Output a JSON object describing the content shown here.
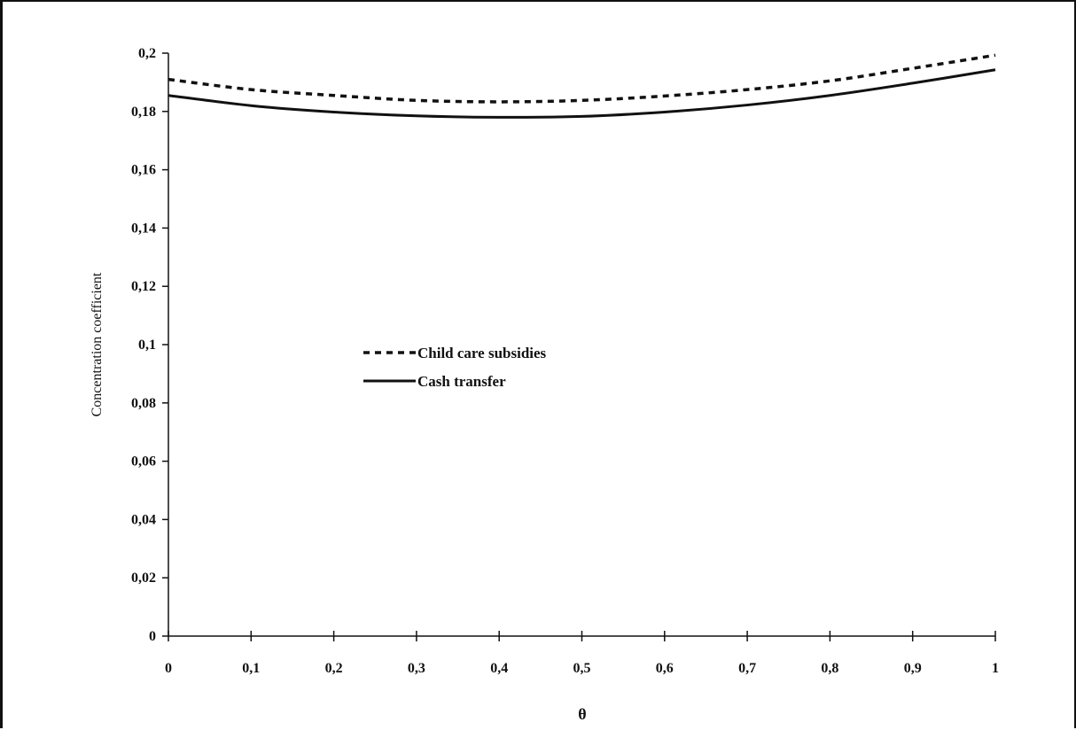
{
  "chart_data": {
    "type": "line",
    "xlabel": "θ",
    "ylabel": "Concentration coefficient",
    "xlim": [
      0,
      1
    ],
    "ylim": [
      0,
      0.2
    ],
    "x_ticks": [
      "0",
      "0,1",
      "0,2",
      "0,3",
      "0,4",
      "0,5",
      "0,6",
      "0,7",
      "0,8",
      "0,9",
      "1"
    ],
    "y_ticks": [
      "0",
      "0,02",
      "0,04",
      "0,06",
      "0,08",
      "0,1",
      "0,12",
      "0,14",
      "0,16",
      "0,18",
      "0,2"
    ],
    "x": [
      0,
      0.1,
      0.2,
      0.3,
      0.4,
      0.5,
      0.6,
      0.7,
      0.8,
      0.9,
      1.0
    ],
    "series": [
      {
        "name": "Child care subsidies",
        "style": "dashed",
        "color": "#111111",
        "values": [
          0.191,
          0.1875,
          0.1855,
          0.1838,
          0.1833,
          0.1838,
          0.1853,
          0.1875,
          0.1905,
          0.1948,
          0.1993
        ]
      },
      {
        "name": "Cash transfer",
        "style": "solid",
        "color": "#111111",
        "values": [
          0.1855,
          0.182,
          0.1798,
          0.1785,
          0.178,
          0.1783,
          0.1798,
          0.1822,
          0.1855,
          0.1897,
          0.1943
        ]
      }
    ],
    "grid": false,
    "legend_position": "center-left"
  }
}
